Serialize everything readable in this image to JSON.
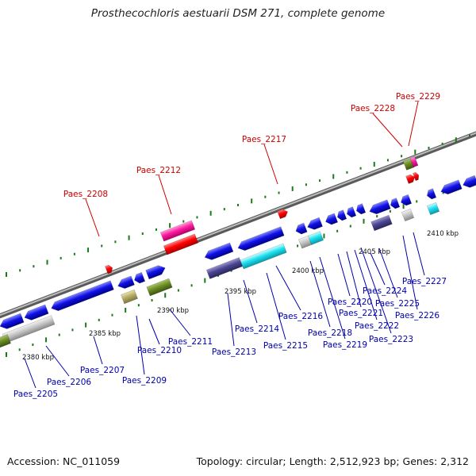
{
  "title": "Prosthecochloris aestuarii DSM 271, complete genome",
  "footer": {
    "accession": "Accession: NC_011059",
    "summary": "Topology: circular; Length: 2,512,923 bp; Genes: 2,312"
  },
  "colors": {
    "top_label": "#cc0000",
    "bottom_label": "#0000aa",
    "backbone": "#8a8a8a",
    "tick": "#1a7a1a"
  },
  "ticks": [
    "2380 kbp",
    "2385 kbp",
    "2390 kbp",
    "2395 kbp",
    "2400 kbp",
    "2405 kbp",
    "2410 kbp"
  ],
  "genes": [
    {
      "name": "Paes_2205",
      "strand": "bottom"
    },
    {
      "name": "Paes_2206",
      "strand": "bottom"
    },
    {
      "name": "Paes_2207",
      "strand": "bottom"
    },
    {
      "name": "Paes_2208",
      "strand": "top"
    },
    {
      "name": "Paes_2209",
      "strand": "bottom"
    },
    {
      "name": "Paes_2210",
      "strand": "bottom"
    },
    {
      "name": "Paes_2211",
      "strand": "bottom"
    },
    {
      "name": "Paes_2212",
      "strand": "top"
    },
    {
      "name": "Paes_2213",
      "strand": "bottom"
    },
    {
      "name": "Paes_2214",
      "strand": "bottom"
    },
    {
      "name": "Paes_2215",
      "strand": "bottom"
    },
    {
      "name": "Paes_2216",
      "strand": "bottom"
    },
    {
      "name": "Paes_2217",
      "strand": "top"
    },
    {
      "name": "Paes_2218",
      "strand": "bottom"
    },
    {
      "name": "Paes_2219",
      "strand": "bottom"
    },
    {
      "name": "Paes_2220",
      "strand": "bottom"
    },
    {
      "name": "Paes_2221",
      "strand": "bottom"
    },
    {
      "name": "Paes_2222",
      "strand": "bottom"
    },
    {
      "name": "Paes_2223",
      "strand": "bottom"
    },
    {
      "name": "Paes_2224",
      "strand": "bottom"
    },
    {
      "name": "Paes_2225",
      "strand": "bottom"
    },
    {
      "name": "Paes_2226",
      "strand": "bottom"
    },
    {
      "name": "Paes_2227",
      "strand": "bottom"
    },
    {
      "name": "Paes_2228",
      "strand": "top"
    },
    {
      "name": "Paes_2229",
      "strand": "top"
    }
  ]
}
